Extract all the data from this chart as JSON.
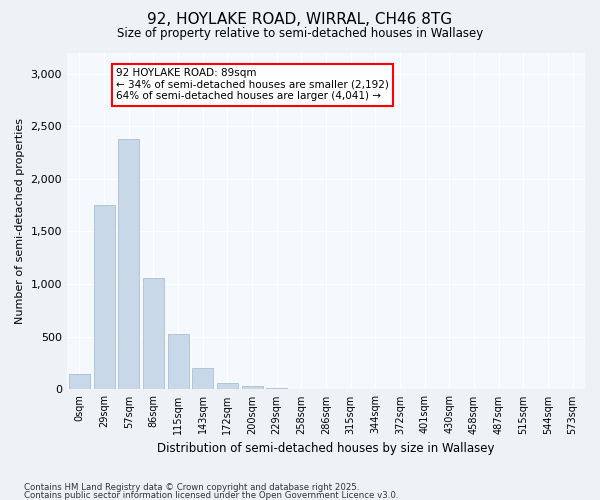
{
  "title1": "92, HOYLAKE ROAD, WIRRAL, CH46 8TG",
  "title2": "Size of property relative to semi-detached houses in Wallasey",
  "xlabel": "Distribution of semi-detached houses by size in Wallasey",
  "ylabel": "Number of semi-detached properties",
  "bar_color": "#c8d8e8",
  "bar_edge_color": "#a0b8cc",
  "annotation_text": "92 HOYLAKE ROAD: 89sqm\n← 34% of semi-detached houses are smaller (2,192)\n64% of semi-detached houses are larger (4,041) →",
  "property_bin_index": 3,
  "bins": [
    "0sqm",
    "29sqm",
    "57sqm",
    "86sqm",
    "115sqm",
    "143sqm",
    "172sqm",
    "200sqm",
    "229sqm",
    "258sqm",
    "286sqm",
    "315sqm",
    "344sqm",
    "372sqm",
    "401sqm",
    "430sqm",
    "458sqm",
    "487sqm",
    "515sqm",
    "544sqm",
    "573sqm"
  ],
  "values": [
    145,
    1750,
    2380,
    1060,
    530,
    200,
    60,
    30,
    10,
    5,
    2,
    1,
    0,
    0,
    0,
    0,
    0,
    0,
    0,
    0,
    0
  ],
  "ylim": [
    0,
    3200
  ],
  "yticks": [
    0,
    500,
    1000,
    1500,
    2000,
    2500,
    3000
  ],
  "footnote1": "Contains HM Land Registry data © Crown copyright and database right 2025.",
  "footnote2": "Contains public sector information licensed under the Open Government Licence v3.0.",
  "bg_color": "#eef2f7",
  "plot_bg_color": "#f5f8fc"
}
